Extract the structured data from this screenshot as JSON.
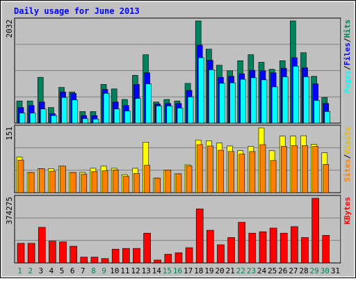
{
  "chart_data": [
    {
      "type": "bar",
      "title": "Daily usage for June 2013",
      "categories": [
        "1",
        "2",
        "3",
        "4",
        "5",
        "6",
        "7",
        "8",
        "9",
        "10",
        "11",
        "12",
        "13",
        "14",
        "15",
        "16",
        "17",
        "18",
        "19",
        "20",
        "21",
        "22",
        "23",
        "24",
        "25",
        "26",
        "27",
        "28",
        "29",
        "30",
        "31"
      ],
      "weekend_days": [
        "1",
        "2",
        "8",
        "9",
        "15",
        "16",
        "22",
        "23",
        "29",
        "30"
      ],
      "ymax_label": "2032",
      "ymax": 2032,
      "series": [
        {
          "name": "Hits",
          "color": "#00805c",
          "values": [
            440,
            440,
            910,
            310,
            710,
            620,
            230,
            230,
            770,
            680,
            470,
            950,
            1360,
            420,
            470,
            440,
            790,
            2032,
            1470,
            1150,
            1040,
            1240,
            1360,
            1210,
            1070,
            1240,
            2032,
            1400,
            930,
            510,
            0
          ]
        },
        {
          "name": "Files",
          "color": "#0000ff",
          "values": [
            310,
            350,
            420,
            190,
            620,
            590,
            150,
            150,
            670,
            420,
            350,
            770,
            1000,
            380,
            390,
            390,
            650,
            1550,
            1250,
            910,
            930,
            980,
            1050,
            1040,
            1000,
            1090,
            1300,
            1100,
            780,
            390,
            0
          ]
        },
        {
          "name": "Pages",
          "color": "#00ffff",
          "values": [
            200,
            200,
            280,
            150,
            510,
            460,
            90,
            80,
            590,
            280,
            240,
            490,
            780,
            340,
            340,
            300,
            520,
            1300,
            1060,
            790,
            800,
            870,
            900,
            860,
            720,
            920,
            1130,
            920,
            450,
            230,
            0
          ]
        }
      ]
    },
    {
      "type": "bar",
      "categories": [
        "1",
        "2",
        "3",
        "4",
        "5",
        "6",
        "7",
        "8",
        "9",
        "10",
        "11",
        "12",
        "13",
        "14",
        "15",
        "16",
        "17",
        "18",
        "19",
        "20",
        "21",
        "22",
        "23",
        "24",
        "25",
        "26",
        "27",
        "28",
        "29",
        "30",
        "31"
      ],
      "ymax_label": "151",
      "ymax": 151,
      "series": [
        {
          "name": "Visits",
          "color": "#ffff00",
          "values": [
            83,
            47,
            56,
            56,
            62,
            47,
            47,
            57,
            62,
            57,
            42,
            57,
            118,
            34,
            53,
            44,
            65,
            123,
            121,
            116,
            109,
            98,
            108,
            151,
            98,
            132,
            132,
            133,
            113,
            93,
            0
          ]
        },
        {
          "name": "Sites",
          "color": "#ff8000",
          "values": [
            76,
            47,
            56,
            50,
            62,
            47,
            43,
            49,
            51,
            53,
            38,
            45,
            64,
            34,
            53,
            44,
            62,
            112,
            109,
            99,
            96,
            90,
            96,
            112,
            75,
            108,
            110,
            110,
            108,
            66,
            0
          ]
        }
      ]
    },
    {
      "type": "bar",
      "categories": [
        "1",
        "2",
        "3",
        "4",
        "5",
        "6",
        "7",
        "8",
        "9",
        "10",
        "11",
        "12",
        "13",
        "14",
        "15",
        "16",
        "17",
        "18",
        "19",
        "20",
        "21",
        "22",
        "23",
        "24",
        "25",
        "26",
        "27",
        "28",
        "29",
        "30",
        "31"
      ],
      "ymax_label": "374275",
      "ymax": 374275,
      "series": [
        {
          "name": "KBytes",
          "color": "#ff0000",
          "values": [
            113400,
            113400,
            206000,
            126000,
            121800,
            96600,
            33600,
            33600,
            25200,
            79800,
            84000,
            84000,
            172200,
            16800,
            50400,
            58800,
            88200,
            312900,
            189000,
            105000,
            147000,
            235200,
            172200,
            180600,
            201600,
            172200,
            210000,
            147000,
            374275,
            159600,
            0
          ]
        }
      ]
    }
  ]
}
